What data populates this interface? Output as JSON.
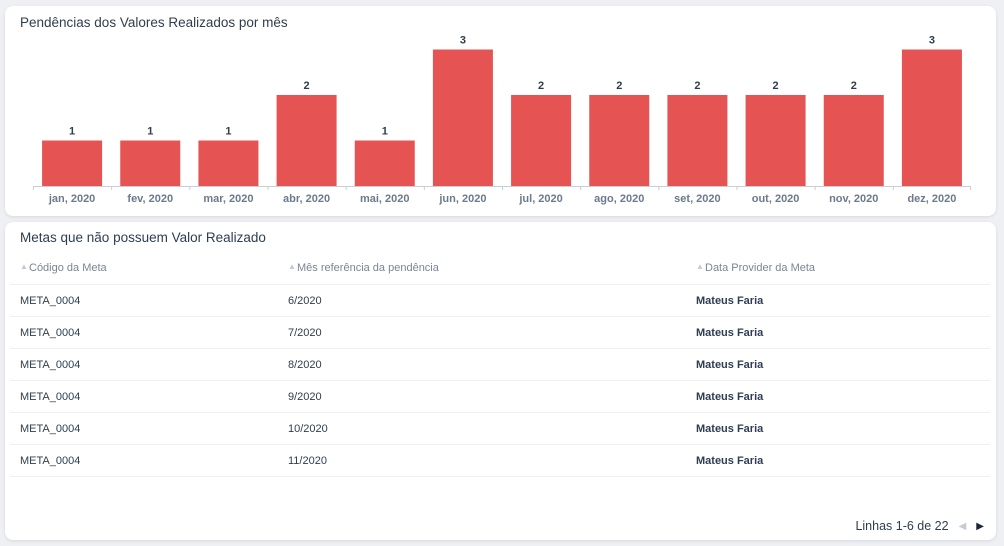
{
  "chart_card": {
    "title": "Pendências dos Valores Realizados por mês"
  },
  "chart_data": {
    "type": "bar",
    "title": "Pendências dos Valores Realizados por mês",
    "categories": [
      "jan, 2020",
      "fev, 2020",
      "mar, 2020",
      "abr, 2020",
      "mai, 2020",
      "jun, 2020",
      "jul, 2020",
      "ago, 2020",
      "set, 2020",
      "out, 2020",
      "nov, 2020",
      "dez, 2020"
    ],
    "values": [
      1,
      1,
      1,
      2,
      1,
      3,
      2,
      2,
      2,
      2,
      2,
      3
    ],
    "xlabel": "",
    "ylabel": "",
    "ylim": [
      0,
      3
    ],
    "grid": false,
    "color": "#e55353"
  },
  "table_card": {
    "title": "Metas que não possuem Valor Realizado",
    "columns": [
      "Código da Meta",
      "Mês referência da pendência",
      "Data Provider da Meta"
    ],
    "rows": [
      [
        "META_0004",
        "6/2020",
        "Mateus Faria"
      ],
      [
        "META_0004",
        "7/2020",
        "Mateus Faria"
      ],
      [
        "META_0004",
        "8/2020",
        "Mateus Faria"
      ],
      [
        "META_0004",
        "9/2020",
        "Mateus Faria"
      ],
      [
        "META_0004",
        "10/2020",
        "Mateus Faria"
      ],
      [
        "META_0004",
        "11/2020",
        "Mateus Faria"
      ]
    ],
    "pagination": {
      "label": "Linhas 1-6 de 22",
      "prev_icon": "chevron-left-icon",
      "next_icon": "chevron-right-icon"
    }
  }
}
